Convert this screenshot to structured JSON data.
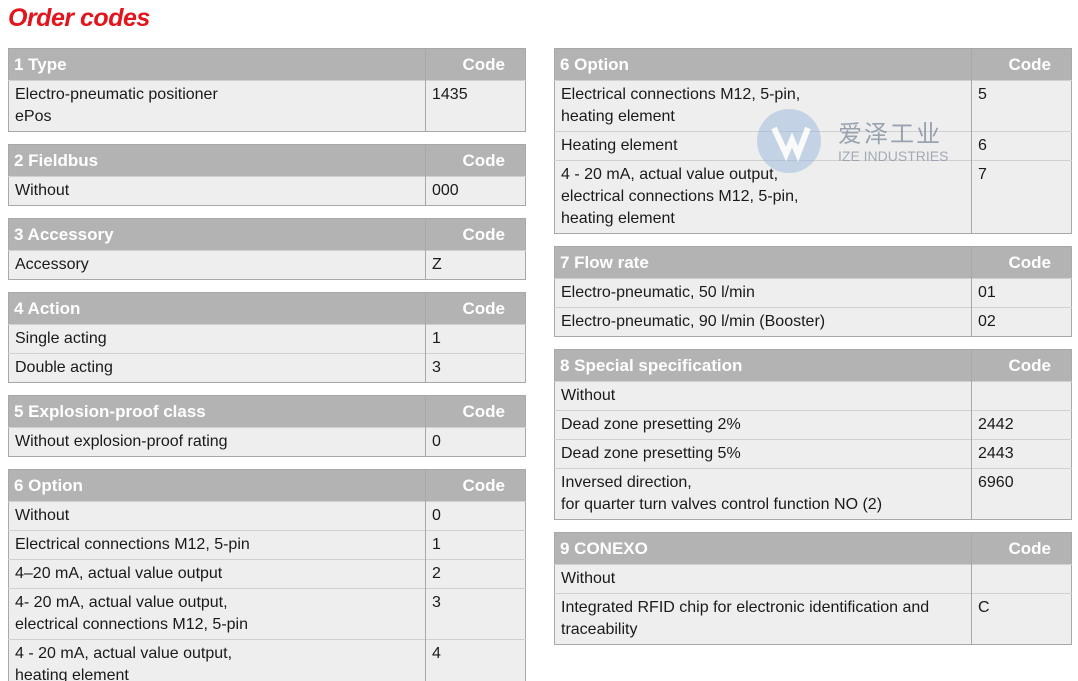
{
  "title": "Order codes",
  "watermark": {
    "brand": "爱泽工业",
    "name": "IZE INDUSTRIES"
  },
  "columns": [
    [
      {
        "heading": "1 Type",
        "code_heading": "Code",
        "rows": [
          [
            "Electro-pneumatic positioner\nePos",
            "1435"
          ]
        ]
      },
      {
        "heading": "2 Fieldbus",
        "code_heading": "Code",
        "rows": [
          [
            "Without",
            "000"
          ]
        ]
      },
      {
        "heading": "3 Accessory",
        "code_heading": "Code",
        "rows": [
          [
            "Accessory",
            "Z"
          ]
        ]
      },
      {
        "heading": "4 Action",
        "code_heading": "Code",
        "rows": [
          [
            "Single acting",
            "1"
          ],
          [
            "Double acting",
            "3"
          ]
        ]
      },
      {
        "heading": "5 Explosion-proof class",
        "code_heading": "Code",
        "rows": [
          [
            "Without explosion-proof rating",
            "0"
          ]
        ]
      },
      {
        "heading": "6 Option",
        "code_heading": "Code",
        "rows": [
          [
            "Without",
            "0"
          ],
          [
            "Electrical connections M12, 5-pin",
            "1"
          ],
          [
            "4–20 mA, actual value output",
            "2"
          ],
          [
            "4- 20 mA, actual value output,\nelectrical connections M12, 5-pin",
            "3"
          ],
          [
            "4 - 20 mA, actual value output,\nheating element",
            "4"
          ]
        ]
      }
    ],
    [
      {
        "heading": "6 Option",
        "code_heading": "Code",
        "rows": [
          [
            "Electrical connections M12, 5-pin,\nheating element",
            "5"
          ],
          [
            "Heating element",
            "6"
          ],
          [
            "4 - 20 mA, actual value output,\nelectrical connections M12, 5-pin,\nheating element",
            "7"
          ]
        ]
      },
      {
        "heading": "7 Flow rate",
        "code_heading": "Code",
        "rows": [
          [
            "Electro-pneumatic, 50 l/min",
            "01"
          ],
          [
            "Electro-pneumatic, 90 l/min (Booster)",
            "02"
          ]
        ]
      },
      {
        "heading": "8 Special specification",
        "code_heading": "Code",
        "rows": [
          [
            "Without",
            null
          ],
          [
            "Dead zone presetting 2%",
            "2442"
          ],
          [
            "Dead zone presetting 5%",
            "2443"
          ],
          [
            "Inversed direction,\nfor quarter turn valves control function NO (2)",
            "6960"
          ]
        ]
      },
      {
        "heading": "9 CONEXO",
        "code_heading": "Code",
        "rows": [
          [
            "Without",
            null
          ],
          [
            "Integrated RFID chip for electronic identification and\ntraceability",
            "C"
          ]
        ]
      }
    ]
  ]
}
